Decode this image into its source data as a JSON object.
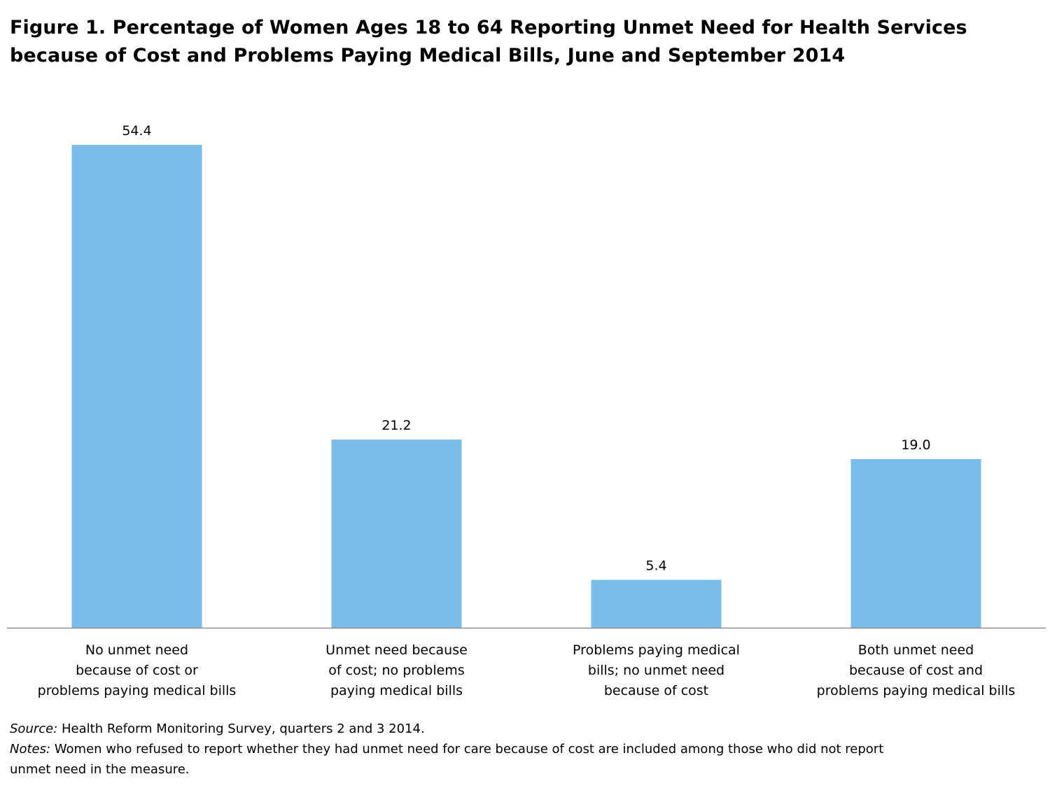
{
  "chart_data": {
    "type": "bar",
    "title_lines": [
      "Figure 1. Percentage of Women Ages 18 to 64 Reporting Unmet Need for Health Services",
      "because of Cost and Problems Paying Medical Bills, June and September 2014"
    ],
    "categories": [
      [
        "No unmet need",
        "because of cost or",
        "problems paying medical bills"
      ],
      [
        "Unmet need because",
        "of cost; no problems",
        "paying medical bills"
      ],
      [
        "Problems paying medical",
        "bills; no unmet need",
        "because of cost"
      ],
      [
        "Both unmet need",
        "because of cost and",
        "problems paying medical bills"
      ]
    ],
    "values": [
      54.4,
      21.2,
      5.4,
      19.0
    ],
    "value_labels": [
      "54.4",
      "21.2",
      "5.4",
      "19.0"
    ],
    "ylim": [
      0,
      54.4
    ],
    "xlabel": "",
    "ylabel": "",
    "grid": false,
    "bar_color": "#79BDE8"
  },
  "footer": {
    "source_label": "Source:",
    "source_text": " Health Reform Monitoring Survey, quarters 2 and 3 2014.",
    "notes_label": "Notes:",
    "notes_line1": " Women who refused to report whether they had unmet need for care because of cost are included among those who did not report",
    "notes_line2": "unmet need in the measure."
  }
}
